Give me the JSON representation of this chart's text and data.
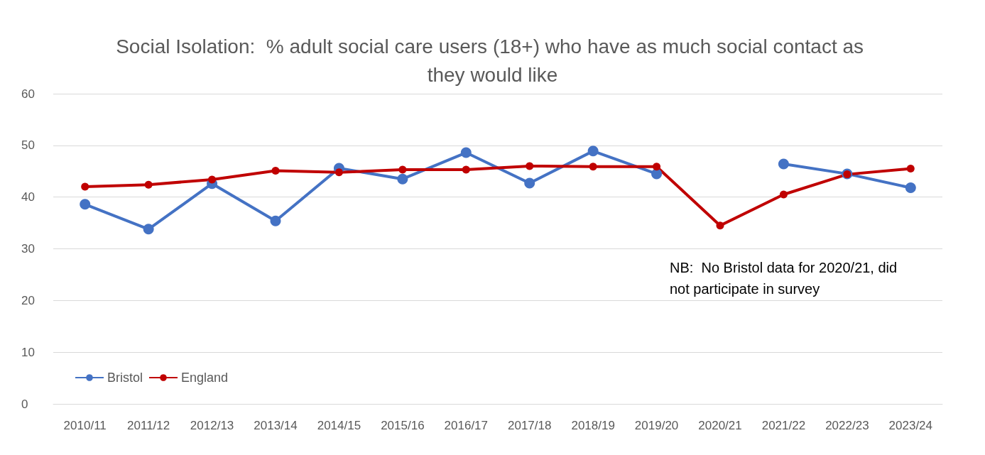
{
  "chart_data": {
    "type": "line",
    "title": "Social Isolation:  % adult social care users (18+) who have as much social contact as they would like",
    "categories": [
      "2010/11",
      "2011/12",
      "2012/13",
      "2013/14",
      "2014/15",
      "2015/16",
      "2016/17",
      "2017/18",
      "2018/19",
      "2019/20",
      "2020/21",
      "2021/22",
      "2022/23",
      "2023/24"
    ],
    "series": [
      {
        "name": "Bristol",
        "color": "#4472c4",
        "values": [
          38.6,
          33.8,
          42.6,
          35.4,
          45.6,
          43.5,
          48.6,
          42.7,
          48.9,
          44.5,
          null,
          46.4,
          44.5,
          41.8
        ]
      },
      {
        "name": "England",
        "color": "#c00000",
        "values": [
          42.0,
          42.4,
          43.4,
          45.1,
          44.8,
          45.3,
          45.3,
          46.0,
          45.9,
          45.9,
          34.5,
          40.5,
          44.4,
          45.5
        ]
      }
    ],
    "ylim": [
      0,
      60
    ],
    "yticks": [
      0,
      10,
      20,
      30,
      40,
      50,
      60
    ],
    "grid": "y",
    "legend": "bottom left",
    "marker": "circle",
    "line_style": "solid",
    "annotations": [
      "NB:  No Bristol data for 2020/21, did not participate in survey"
    ]
  }
}
